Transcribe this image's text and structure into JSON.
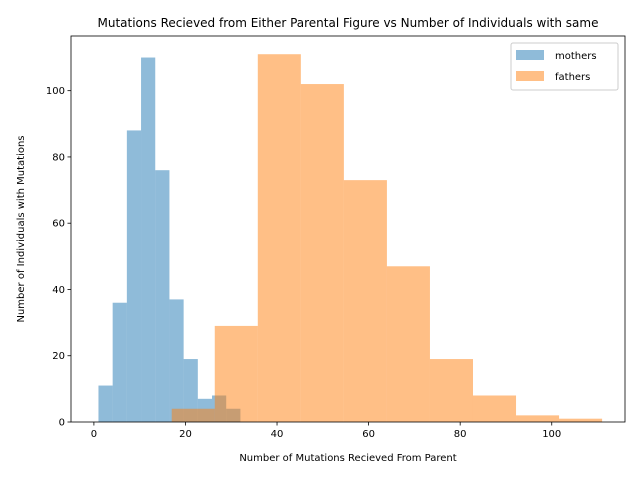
{
  "chart_data": {
    "type": "histogram",
    "title": "Mutations Recieved from Either Parental Figure vs Number of Individuals with same",
    "xlabel": "Number of Mutations Recieved From Parent",
    "ylabel": "Number of Individuals with Mutations",
    "xlim": [
      -5,
      116
    ],
    "ylim": [
      0,
      116.5
    ],
    "xticks": [
      0,
      20,
      40,
      60,
      80,
      100
    ],
    "yticks": [
      0,
      20,
      40,
      60,
      80,
      100
    ],
    "grid": false,
    "legend_position": "top-right",
    "series": [
      {
        "name": "mothers",
        "color": "#1f77b4",
        "opacity": 0.5,
        "bins": [
          {
            "x0": 1.0,
            "x1": 4.1,
            "count": 11
          },
          {
            "x0": 4.1,
            "x1": 7.2,
            "count": 36
          },
          {
            "x0": 7.2,
            "x1": 10.3,
            "count": 88
          },
          {
            "x0": 10.3,
            "x1": 13.4,
            "count": 110
          },
          {
            "x0": 13.4,
            "x1": 16.5,
            "count": 76
          },
          {
            "x0": 16.5,
            "x1": 19.6,
            "count": 37
          },
          {
            "x0": 19.6,
            "x1": 22.7,
            "count": 19
          },
          {
            "x0": 22.7,
            "x1": 25.8,
            "count": 7
          },
          {
            "x0": 25.8,
            "x1": 28.9,
            "count": 8
          },
          {
            "x0": 28.9,
            "x1": 32.0,
            "count": 4
          }
        ]
      },
      {
        "name": "fathers",
        "color": "#ff7f0e",
        "opacity": 0.5,
        "bins": [
          {
            "x0": 17.0,
            "x1": 26.4,
            "count": 4
          },
          {
            "x0": 26.4,
            "x1": 35.8,
            "count": 29
          },
          {
            "x0": 35.8,
            "x1": 45.2,
            "count": 111
          },
          {
            "x0": 45.2,
            "x1": 54.6,
            "count": 102
          },
          {
            "x0": 54.6,
            "x1": 64.0,
            "count": 73
          },
          {
            "x0": 64.0,
            "x1": 73.4,
            "count": 47
          },
          {
            "x0": 73.4,
            "x1": 82.8,
            "count": 19
          },
          {
            "x0": 82.8,
            "x1": 92.2,
            "count": 8
          },
          {
            "x0": 92.2,
            "x1": 101.6,
            "count": 2
          },
          {
            "x0": 101.6,
            "x1": 111.0,
            "count": 1
          }
        ]
      }
    ]
  }
}
